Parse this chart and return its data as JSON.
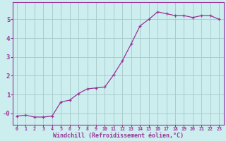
{
  "x": [
    0,
    1,
    2,
    3,
    4,
    5,
    6,
    7,
    8,
    9,
    10,
    11,
    12,
    13,
    14,
    15,
    16,
    17,
    18,
    19,
    20,
    21,
    22,
    23
  ],
  "y": [
    -0.15,
    -0.1,
    -0.2,
    -0.2,
    -0.15,
    0.6,
    0.7,
    1.05,
    1.3,
    1.35,
    1.4,
    2.05,
    2.8,
    3.7,
    4.65,
    5.0,
    5.4,
    5.3,
    5.2,
    5.2,
    5.1,
    5.2,
    5.2,
    5.0
  ],
  "line_color": "#993399",
  "marker": "+",
  "bg_color": "#cceeee",
  "grid_color": "#aacccc",
  "xlabel": "Windchill (Refroidissement éolien,°C)",
  "xlabel_color": "#993399",
  "tick_color": "#993399",
  "spine_color": "#993399",
  "xlim": [
    -0.5,
    23.5
  ],
  "ylim": [
    -0.6,
    5.9
  ],
  "yticks": [
    0,
    1,
    2,
    3,
    4,
    5
  ],
  "ytick_labels": [
    "-0",
    "1",
    "2",
    "3",
    "4",
    "5"
  ],
  "xticks": [
    0,
    1,
    2,
    3,
    4,
    5,
    6,
    7,
    8,
    9,
    10,
    11,
    12,
    13,
    14,
    15,
    16,
    17,
    18,
    19,
    20,
    21,
    22,
    23
  ]
}
